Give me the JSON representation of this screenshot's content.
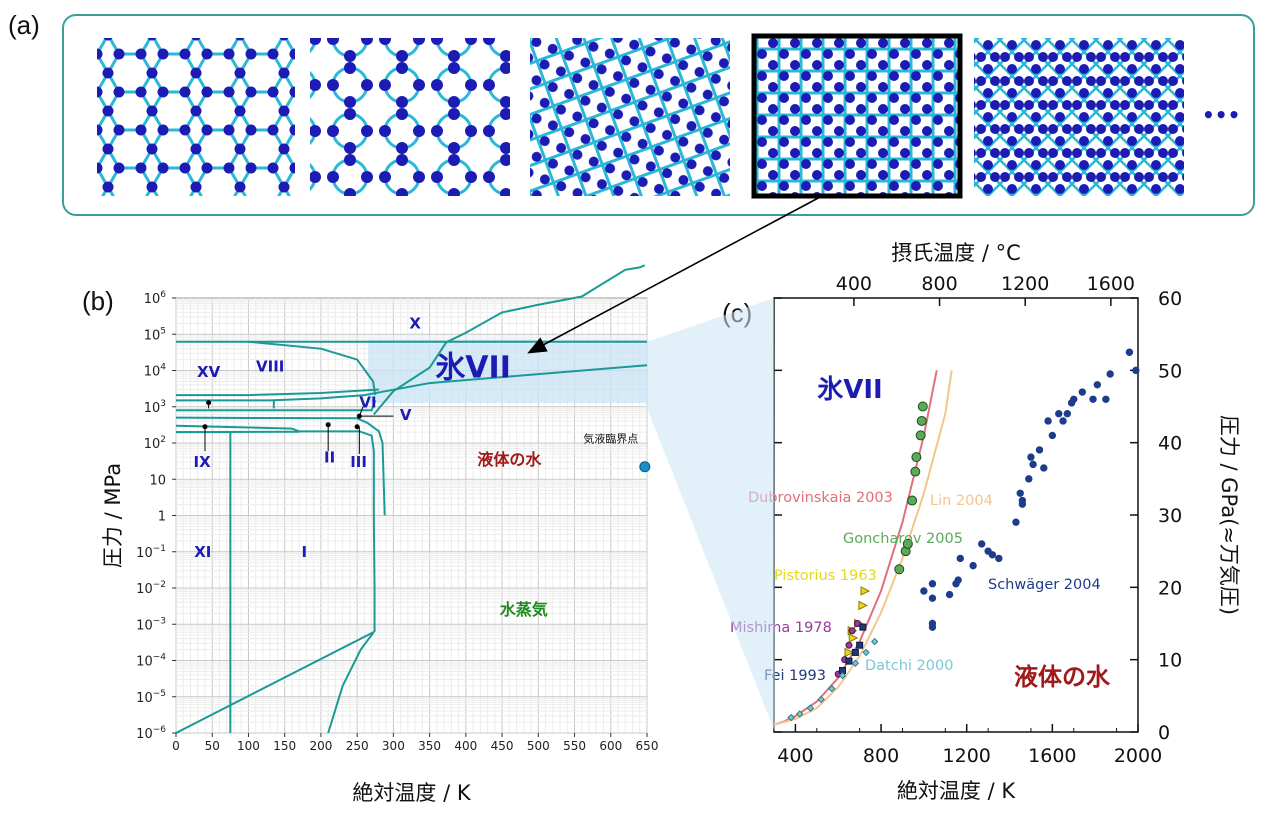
{
  "panel_labels": {
    "a": "(a)",
    "b": "(b)",
    "c": "(c)"
  },
  "strip": {
    "ellipsis": "•••",
    "thumbnail_count": 5,
    "highlighted_index": 3
  },
  "colors": {
    "teal": "#1a9a95",
    "navy": "#1c1cb4",
    "liquid_red": "#a01818",
    "vapor_green": "#1e8c1e",
    "dubrovinskaia": "#e0707a",
    "lin": "#f2c78a",
    "goncharov": "#5aaa5a",
    "pistorius": "#e6d81a",
    "mishima": "#9a3a9a",
    "fei": "#1e3a7a",
    "datchi": "#7ac8d8",
    "schwager": "#1e3c8c",
    "highlight": "#c8e4f4"
  },
  "chart_data": [
    {
      "type": "line",
      "title": "",
      "xlabel": "絶対温度 / K",
      "ylabel": "圧力 / MPa",
      "xlim": [
        0,
        650
      ],
      "ylim_log10": [
        -6,
        6
      ],
      "y_scale": "log",
      "grid": true,
      "x_ticks": [
        "0",
        "50",
        "100",
        "150",
        "200",
        "250",
        "300",
        "350",
        "400",
        "450",
        "500",
        "550",
        "600",
        "650"
      ],
      "y_tick_exponents": [
        -6,
        -5,
        -4,
        -3,
        -2,
        -1,
        0,
        1,
        2,
        3,
        4,
        5,
        6
      ],
      "y_tick_labels_plain": {
        "0": "1",
        "1": "10"
      },
      "series": [
        {
          "points": [
            [
              273,
              611
            ],
            [
              300,
              2700
            ],
            [
              350,
              12000
            ],
            [
              373,
              60000
            ],
            [
              400,
              110000
            ],
            [
              450,
              400000
            ],
            [
              500,
              650000
            ],
            [
              560,
              1100000
            ],
            [
              620,
              6000000
            ],
            [
              640,
              7000000
            ],
            [
              647,
              8000000
            ]
          ]
        }
      ],
      "phase_labels": [
        {
          "text": "X",
          "x": 330,
          "y": 200000,
          "style": "phase"
        },
        {
          "text": "氷VII",
          "x": 410,
          "y": 12000,
          "style": "big"
        },
        {
          "text": "VIII",
          "x": 130,
          "y": 13000,
          "style": "phase"
        },
        {
          "text": "XV",
          "x": 45,
          "y": 9000,
          "style": "phase"
        },
        {
          "text": "VI",
          "x": 265,
          "y": 1300,
          "style": "phase"
        },
        {
          "text": "V",
          "x": 317,
          "y": 600,
          "style": "phase"
        },
        {
          "text": "II",
          "x": 212,
          "y": 40,
          "style": "phase"
        },
        {
          "text": "III",
          "x": 252,
          "y": 30,
          "style": "phase"
        },
        {
          "text": "IX",
          "x": 36,
          "y": 30,
          "style": "phase"
        },
        {
          "text": "XI",
          "x": 37,
          "y": 0.1,
          "style": "phase"
        },
        {
          "text": "I",
          "x": 177,
          "y": 0.1,
          "style": "phase"
        },
        {
          "text": "液体の水",
          "x": 460,
          "y": 35,
          "style": "liquid"
        },
        {
          "text": "水蒸気",
          "x": 480,
          "y": 0.0025,
          "style": "vapor"
        },
        {
          "text": "気液臨界点",
          "x": 600,
          "y": 130,
          "style": "small"
        }
      ],
      "critical_point": {
        "x": 647,
        "y": 22.06
      }
    },
    {
      "type": "scatter",
      "title": "",
      "xlabel": "絶対温度 / K",
      "ylabel": "圧力 / GPa(≈万気圧)",
      "top_xlabel": "摂氏温度 / °C",
      "xlim": [
        300,
        2000
      ],
      "ylim": [
        0,
        60
      ],
      "x_ticks": [
        400,
        800,
        1200,
        1600,
        2000
      ],
      "y_ticks": [
        0,
        10,
        20,
        30,
        40,
        50,
        60
      ],
      "top_x_ticks": [
        400,
        800,
        1200,
        1600
      ],
      "region_labels": {
        "ice_vii": "氷VII",
        "liquid": "液体の水"
      },
      "series": [
        {
          "name": "Dubrovinskaia 2003",
          "type": "curve",
          "points": [
            [
              300,
              1
            ],
            [
              350,
              1.5
            ],
            [
              400,
              2.2
            ],
            [
              500,
              4.2
            ],
            [
              600,
              7.5
            ],
            [
              700,
              12.5
            ],
            [
              800,
              19.5
            ],
            [
              900,
              29
            ],
            [
              1000,
              41
            ],
            [
              1060,
              50
            ]
          ]
        },
        {
          "name": "Lin 2004",
          "type": "curve",
          "points": [
            [
              300,
              1
            ],
            [
              400,
              1.8
            ],
            [
              500,
              3.3
            ],
            [
              600,
              6.2
            ],
            [
              700,
              10.5
            ],
            [
              800,
              16.5
            ],
            [
              900,
              24
            ],
            [
              1000,
              33
            ],
            [
              1100,
              44
            ],
            [
              1130,
              50
            ]
          ]
        },
        {
          "name": "Goncharov 2005",
          "type": "points",
          "points": [
            [
              885,
              22.5
            ],
            [
              915,
              25
            ],
            [
              925,
              26
            ],
            [
              945,
              32
            ],
            [
              960,
              36
            ],
            [
              965,
              38
            ],
            [
              985,
              41
            ],
            [
              990,
              43
            ],
            [
              995,
              45
            ]
          ]
        },
        {
          "name": "Pistorius 1963",
          "type": "points",
          "points": [
            [
              650,
              11
            ],
            [
              670,
              13
            ],
            [
              695,
              15
            ],
            [
              715,
              17.5
            ],
            [
              725,
              19.5
            ],
            [
              665,
              14
            ]
          ]
        },
        {
          "name": "Mishima 1978",
          "type": "points",
          "points": [
            [
              600,
              8
            ],
            [
              630,
              10
            ],
            [
              650,
              12
            ],
            [
              665,
              14
            ],
            [
              690,
              15
            ]
          ]
        },
        {
          "name": "Fei 1993",
          "type": "points",
          "points": [
            [
              620,
              8.5
            ],
            [
              650,
              9.8
            ],
            [
              700,
              12
            ],
            [
              715,
              14.5
            ],
            [
              680,
              11
            ]
          ]
        },
        {
          "name": "Datchi 2000",
          "type": "points",
          "points": [
            [
              380,
              2
            ],
            [
              420,
              2.5
            ],
            [
              470,
              3.3
            ],
            [
              520,
              4.5
            ],
            [
              570,
              6
            ],
            [
              620,
              7.8
            ],
            [
              680,
              9.5
            ],
            [
              730,
              11
            ],
            [
              770,
              12.5
            ]
          ]
        },
        {
          "name": "Schwäger 2004",
          "type": "points",
          "points": [
            [
              1000,
              19.5
            ],
            [
              1040,
              18.5
            ],
            [
              1040,
              20.5
            ],
            [
              1040,
              15
            ],
            [
              1040,
              14.5
            ],
            [
              1120,
              19
            ],
            [
              1150,
              20.5
            ],
            [
              1160,
              21
            ],
            [
              1170,
              24
            ],
            [
              1230,
              23
            ],
            [
              1270,
              26
            ],
            [
              1300,
              25
            ],
            [
              1320,
              24.5
            ],
            [
              1350,
              24
            ],
            [
              1430,
              29
            ],
            [
              1450,
              33
            ],
            [
              1460,
              32
            ],
            [
              1460,
              31.5
            ],
            [
              1490,
              35
            ],
            [
              1500,
              38
            ],
            [
              1510,
              37
            ],
            [
              1540,
              39
            ],
            [
              1560,
              36.5
            ],
            [
              1580,
              43
            ],
            [
              1600,
              41
            ],
            [
              1630,
              44
            ],
            [
              1650,
              43
            ],
            [
              1670,
              44
            ],
            [
              1690,
              45.5
            ],
            [
              1700,
              46
            ],
            [
              1740,
              47
            ],
            [
              1790,
              46
            ],
            [
              1810,
              48
            ],
            [
              1850,
              46
            ],
            [
              1870,
              49.5
            ],
            [
              1960,
              52.5
            ],
            [
              1990,
              50
            ]
          ]
        }
      ]
    }
  ]
}
